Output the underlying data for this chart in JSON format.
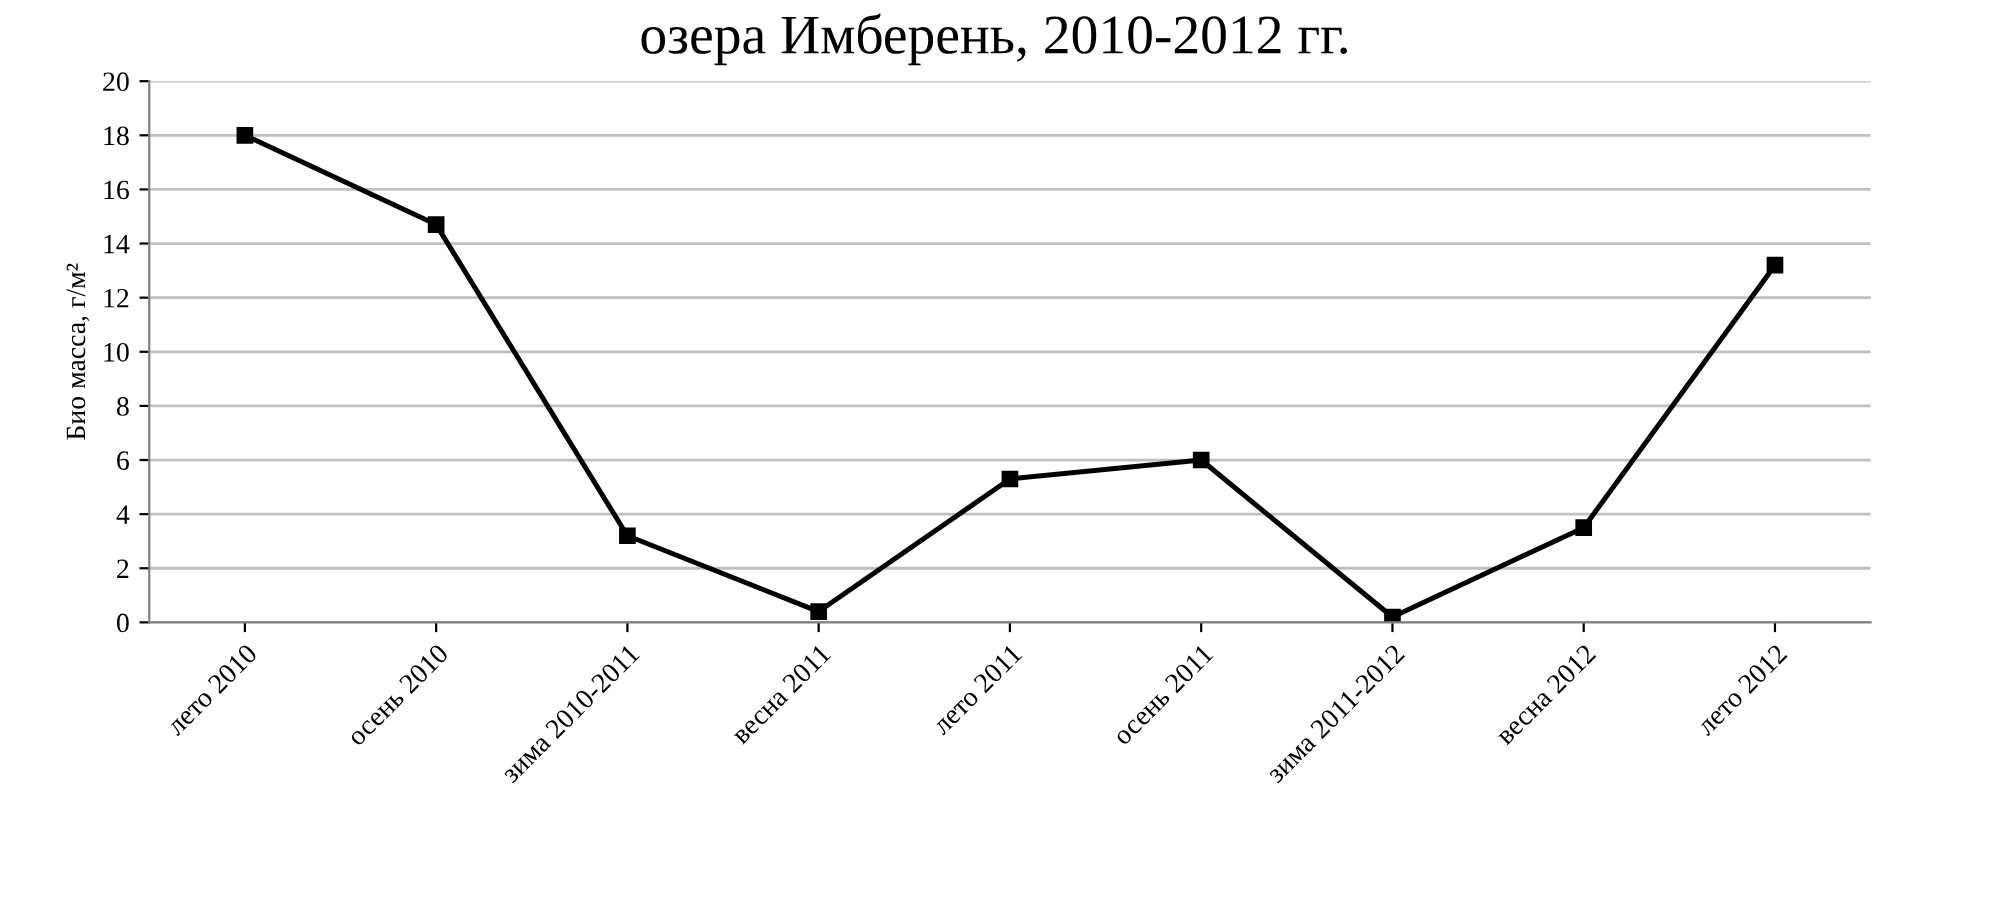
{
  "chart_data": {
    "type": "line",
    "title": "озера Имберень, 2010-2012 гг.",
    "ylabel": "Био масса, г/м²",
    "categories": [
      "лето 2010",
      "осень 2010",
      "зима 2010-2011",
      "весна 2011",
      "лето 2011",
      "осень 2011",
      "зима 2011-2012",
      "весна 2012",
      "лето 2012"
    ],
    "series": [
      {
        "color": "#000000",
        "values": [
          18.0,
          14.7,
          3.2,
          0.4,
          5.3,
          6.0,
          0.2,
          3.5,
          13.2
        ]
      }
    ],
    "ylim": [
      0,
      20
    ],
    "yticks": [
      0,
      2,
      4,
      6,
      8,
      10,
      12,
      14,
      16,
      18,
      20
    ],
    "grid": "y",
    "marker": "square",
    "line_style": "solid",
    "legend": false
  }
}
